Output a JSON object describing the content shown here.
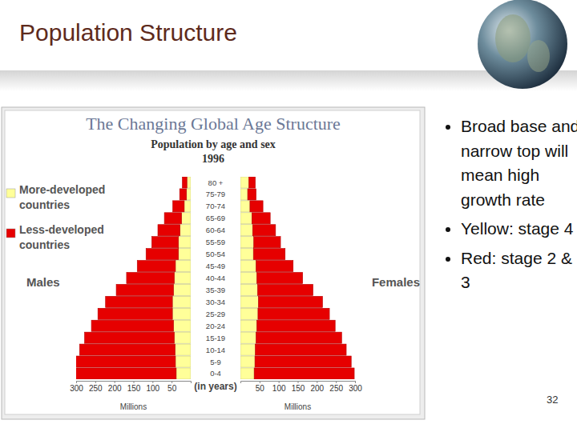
{
  "slide": {
    "title": "Population Structure",
    "bullets": [
      "Broad base and narrow top will mean high growth rate",
      "Yellow: stage 4",
      "Red: stage 2 & 3"
    ],
    "page_number": 32
  },
  "chart_data": {
    "type": "bar",
    "orientation": "horizontal",
    "stacked": true,
    "legend": "left",
    "title": "The Changing Global Age Structure",
    "subtitle": "Population by age and sex",
    "year": "1996",
    "groups": [
      "Males",
      "Females"
    ],
    "xlabel": "Millions",
    "category_label": "(in years)",
    "categories": [
      "0-4",
      "5-9",
      "10-14",
      "15-19",
      "20-24",
      "25-29",
      "30-34",
      "35-39",
      "40-44",
      "45-49",
      "50-54",
      "55-59",
      "60-64",
      "65-69",
      "70-74",
      "75-79",
      "80 +"
    ],
    "xlim": [
      0,
      300
    ],
    "xticks": [
      50,
      100,
      150,
      200,
      250,
      300
    ],
    "series": [
      {
        "name": "More-developed countries",
        "color": "#ffff99",
        "values": [
          [
            38,
            40,
            41,
            43,
            45,
            48,
            48,
            45,
            43,
            40,
            32,
            32,
            28,
            24,
            17,
            11,
            10
          ],
          [
            36,
            38,
            39,
            41,
            43,
            46,
            47,
            45,
            43,
            41,
            34,
            35,
            32,
            30,
            25,
            19,
            22
          ]
        ]
      },
      {
        "name": "Less-developed countries",
        "color": "#e60000",
        "values": [
          [
            275,
            265,
            250,
            235,
            215,
            195,
            175,
            150,
            125,
            100,
            85,
            70,
            58,
            45,
            30,
            18,
            12
          ],
          [
            262,
            252,
            238,
            224,
            205,
            187,
            168,
            145,
            120,
            97,
            83,
            70,
            60,
            48,
            34,
            22,
            17
          ]
        ]
      }
    ]
  }
}
